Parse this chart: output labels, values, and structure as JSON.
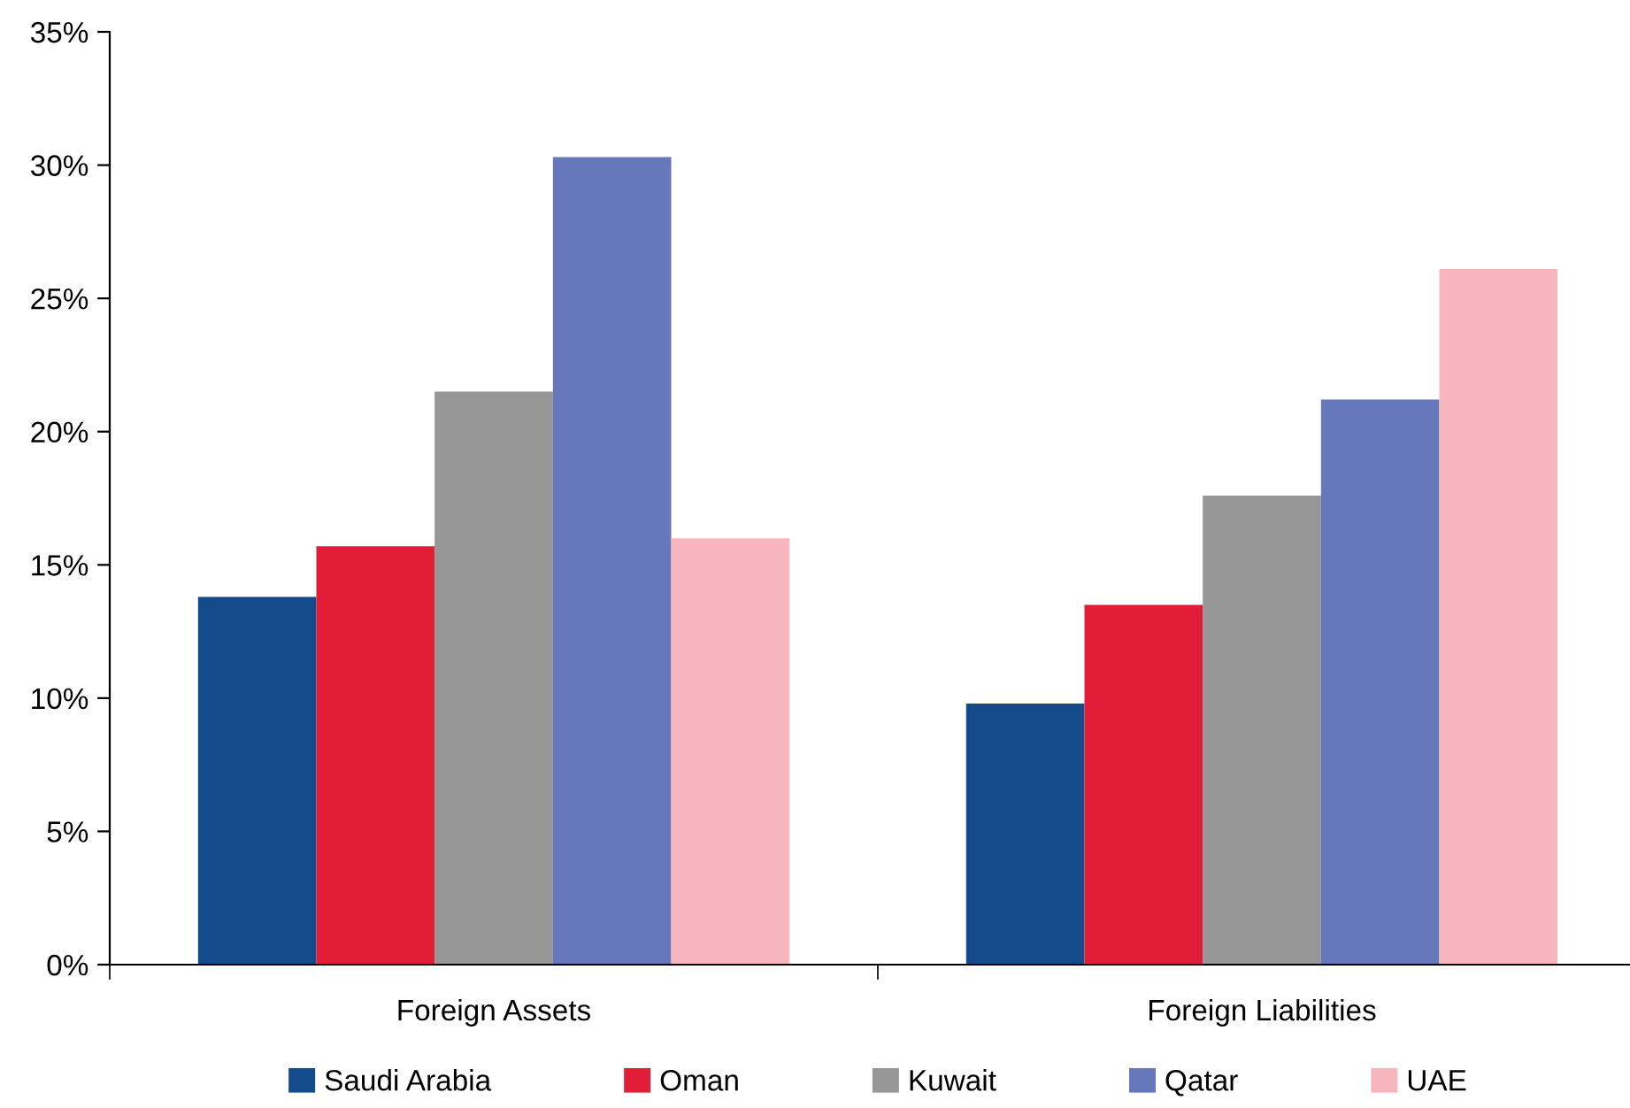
{
  "chart_data": {
    "type": "bar",
    "categories": [
      "Foreign Assets",
      "Foreign Liabilities"
    ],
    "series": [
      {
        "name": "Saudi Arabia",
        "color": "#124a8a",
        "values": [
          13.8,
          9.8
        ]
      },
      {
        "name": "Oman",
        "color": "#e21d38",
        "values": [
          15.7,
          13.5
        ]
      },
      {
        "name": "Kuwait",
        "color": "#969696",
        "values": [
          21.5,
          17.6
        ]
      },
      {
        "name": "Qatar",
        "color": "#6677bb",
        "values": [
          30.3,
          21.2
        ]
      },
      {
        "name": "UAE",
        "color": "#f7b6be",
        "values": [
          16.0,
          26.1
        ]
      }
    ],
    "ylim": [
      0,
      35
    ],
    "yticks": [
      {
        "value": 0,
        "label": "0%"
      },
      {
        "value": 5,
        "label": "5%"
      },
      {
        "value": 10,
        "label": "10%"
      },
      {
        "value": 15,
        "label": "15%"
      },
      {
        "value": 20,
        "label": "20%"
      },
      {
        "value": 25,
        "label": "25%"
      },
      {
        "value": 30,
        "label": "30%"
      },
      {
        "value": 35,
        "label": "35%"
      }
    ],
    "grid": false,
    "legend": "bottom"
  }
}
